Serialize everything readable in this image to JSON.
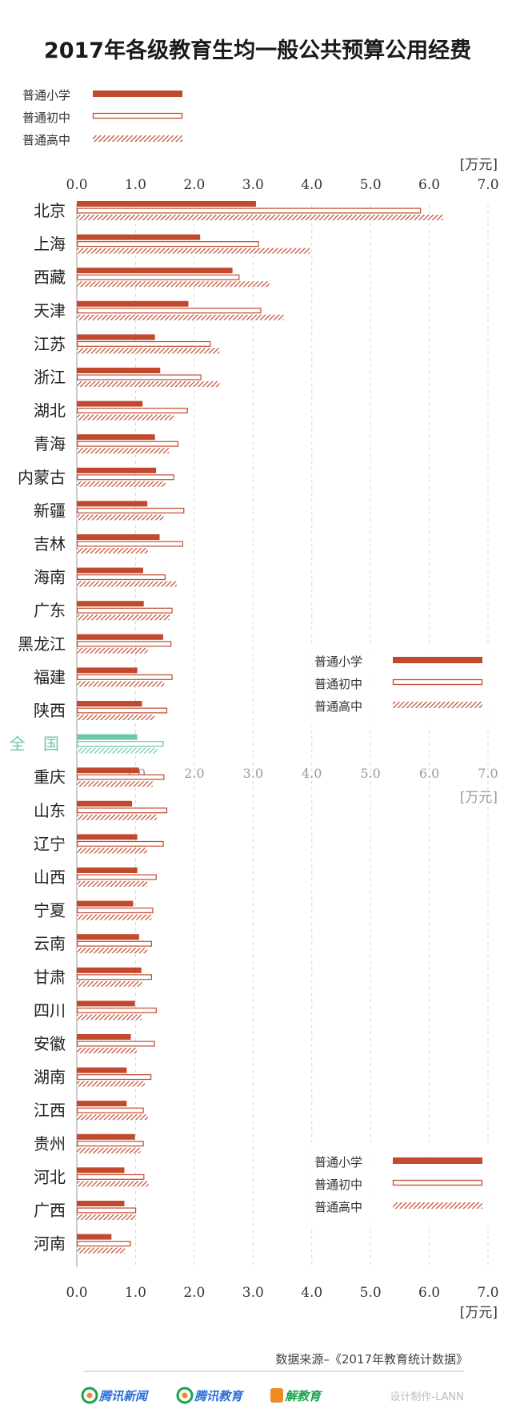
{
  "colors": {
    "primary": "#c1492d",
    "national": "#6cc9a8",
    "axis_text": "#333333",
    "grid": "#d8d8d8",
    "logo_green": "#1aa34a",
    "logo_blue": "#2b6fd6",
    "logo_orange": "#f08a24"
  },
  "chart_data": {
    "type": "bar",
    "orientation": "horizontal",
    "title": "2017年各级教育生均一般公共预算公用经费",
    "unit": "[万元]",
    "xlim": [
      0,
      7.0
    ],
    "ticks": [
      "0.0",
      "1.0",
      "2.0",
      "3.0",
      "4.0",
      "5.0",
      "6.0",
      "7.0"
    ],
    "grid": true,
    "legend_position": "top-left",
    "series": [
      {
        "name": "普通小学",
        "style": "solid"
      },
      {
        "name": "普通初中",
        "style": "outline"
      },
      {
        "name": "普通高中",
        "style": "hatched"
      }
    ],
    "categories": [
      "北京",
      "上海",
      "西藏",
      "天津",
      "江苏",
      "浙江",
      "湖北",
      "青海",
      "内蒙古",
      "新疆",
      "吉林",
      "海南",
      "广东",
      "黑龙江",
      "福建",
      "陕西",
      "全 国",
      "重庆",
      "山东",
      "辽宁",
      "山西",
      "宁夏",
      "云南",
      "甘肃",
      "四川",
      "安徽",
      "湖南",
      "江西",
      "贵州",
      "河北",
      "广西",
      "河南"
    ],
    "highlight_category": "全 国",
    "values": [
      [
        3.05,
        5.86,
        6.23
      ],
      [
        2.1,
        3.1,
        3.97
      ],
      [
        2.65,
        2.77,
        3.28
      ],
      [
        1.9,
        3.14,
        3.52
      ],
      [
        1.33,
        2.28,
        2.43
      ],
      [
        1.42,
        2.12,
        2.43
      ],
      [
        1.12,
        1.89,
        1.65
      ],
      [
        1.33,
        1.73,
        1.57
      ],
      [
        1.35,
        1.66,
        1.51
      ],
      [
        1.2,
        1.83,
        1.48
      ],
      [
        1.41,
        1.81,
        1.21
      ],
      [
        1.13,
        1.51,
        1.7
      ],
      [
        1.14,
        1.63,
        1.58
      ],
      [
        1.47,
        1.61,
        1.21
      ],
      [
        1.03,
        1.63,
        1.49
      ],
      [
        1.11,
        1.54,
        1.32
      ],
      [
        1.03,
        1.48,
        1.37
      ],
      [
        1.06,
        1.49,
        1.29
      ],
      [
        0.94,
        1.54,
        1.36
      ],
      [
        1.03,
        1.48,
        1.2
      ],
      [
        1.03,
        1.36,
        1.2
      ],
      [
        0.96,
        1.3,
        1.27
      ],
      [
        1.06,
        1.28,
        1.2
      ],
      [
        1.1,
        1.28,
        1.11
      ],
      [
        0.99,
        1.36,
        1.1
      ],
      [
        0.92,
        1.33,
        1.02
      ],
      [
        0.85,
        1.27,
        1.16
      ],
      [
        0.85,
        1.14,
        1.21
      ],
      [
        0.99,
        1.14,
        1.08
      ],
      [
        0.81,
        1.15,
        1.22
      ],
      [
        0.81,
        1.01,
        1.0
      ],
      [
        0.59,
        0.92,
        0.82
      ]
    ]
  },
  "footer": {
    "source": "数据来源–《2017年教育统计数据》",
    "logos": [
      "腾讯新闻",
      "腾讯教育",
      "解教育"
    ],
    "credit": "设计制作-LANN"
  }
}
